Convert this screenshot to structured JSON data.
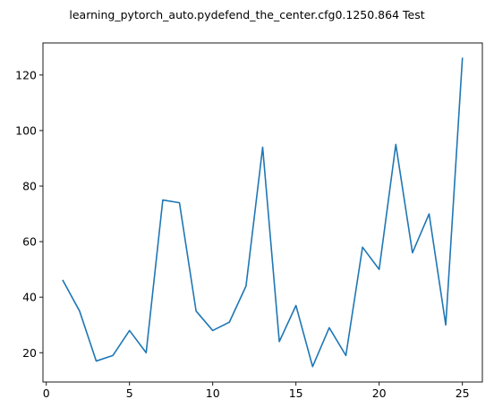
{
  "chart_data": {
    "type": "line",
    "title": "learning_pytorch_auto.pydefend_the_center.cfg0.1250.864 Test",
    "xlabel": "",
    "ylabel": "",
    "x": [
      1,
      2,
      3,
      4,
      5,
      6,
      7,
      8,
      9,
      10,
      11,
      12,
      13,
      14,
      15,
      16,
      17,
      18,
      19,
      20,
      21,
      22,
      23,
      24,
      25
    ],
    "series": [
      {
        "values": [
          46,
          35,
          17,
          19,
          28,
          20,
          75,
          74,
          35,
          28,
          31,
          44,
          94,
          24,
          37,
          15,
          29,
          19,
          58,
          50,
          95,
          56,
          70,
          30,
          126
        ],
        "color": "#1f77b4"
      }
    ],
    "xlim": [
      -0.2,
      26.2
    ],
    "ylim": [
      9.45,
      131.55
    ],
    "xticks": [
      0,
      5,
      10,
      15,
      20,
      25
    ],
    "yticks": [
      20,
      40,
      60,
      80,
      100,
      120
    ],
    "grid": false,
    "legend": "none"
  }
}
